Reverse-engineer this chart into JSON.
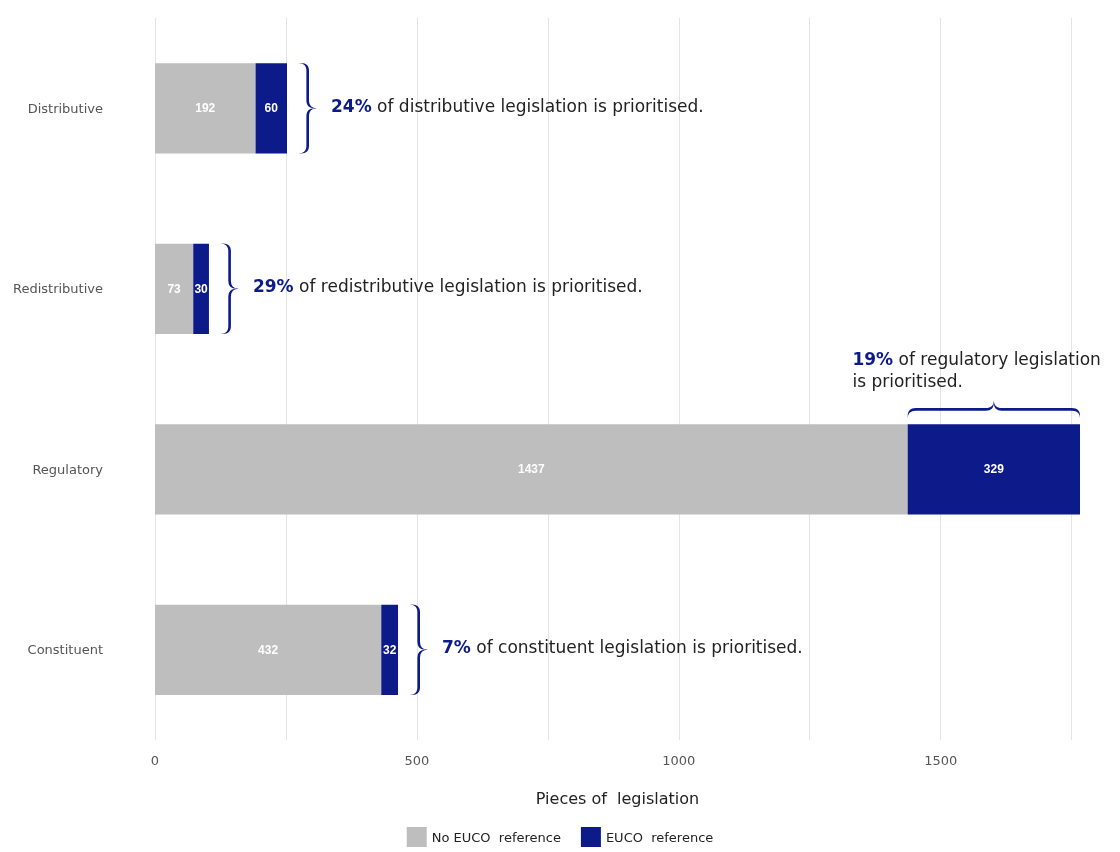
{
  "chart_data": {
    "type": "bar",
    "orientation": "horizontal",
    "stacked": true,
    "categories": [
      "Distributive",
      "Redistributive",
      "Regulatory",
      "Constituent"
    ],
    "series": [
      {
        "name": "No EUCO  reference",
        "color": "#bebebe",
        "values": [
          192,
          73,
          1437,
          432
        ]
      },
      {
        "name": "EUCO  reference",
        "color": "#0c1a8a",
        "values": [
          60,
          30,
          329,
          32
        ]
      }
    ],
    "xlabel": "Pieces of  legislation",
    "xlim": [
      0,
      1766
    ],
    "xticks": [
      0,
      {
        "value": 250,
        "label": null
      },
      500,
      {
        "value": 750,
        "label": null
      },
      1000,
      {
        "value": 1250,
        "label": null
      },
      1500,
      {
        "value": 1750,
        "label": null
      }
    ],
    "grid": "x",
    "data_labels": true,
    "legend": "bottom",
    "annotations": [
      {
        "text": "24% of distributive legislation is prioritised.",
        "x": 252,
        "y": "Distributive"
      },
      {
        "text": "29% of redistributive legislation is prioritised.",
        "x": 103,
        "y": "Redistributive"
      },
      "19% of regulatory legislation is prioritised.",
      {
        "text": "7% of constituent legislation is prioritised.",
        "x": 464,
        "y": "Constituent"
      }
    ]
  }
}
